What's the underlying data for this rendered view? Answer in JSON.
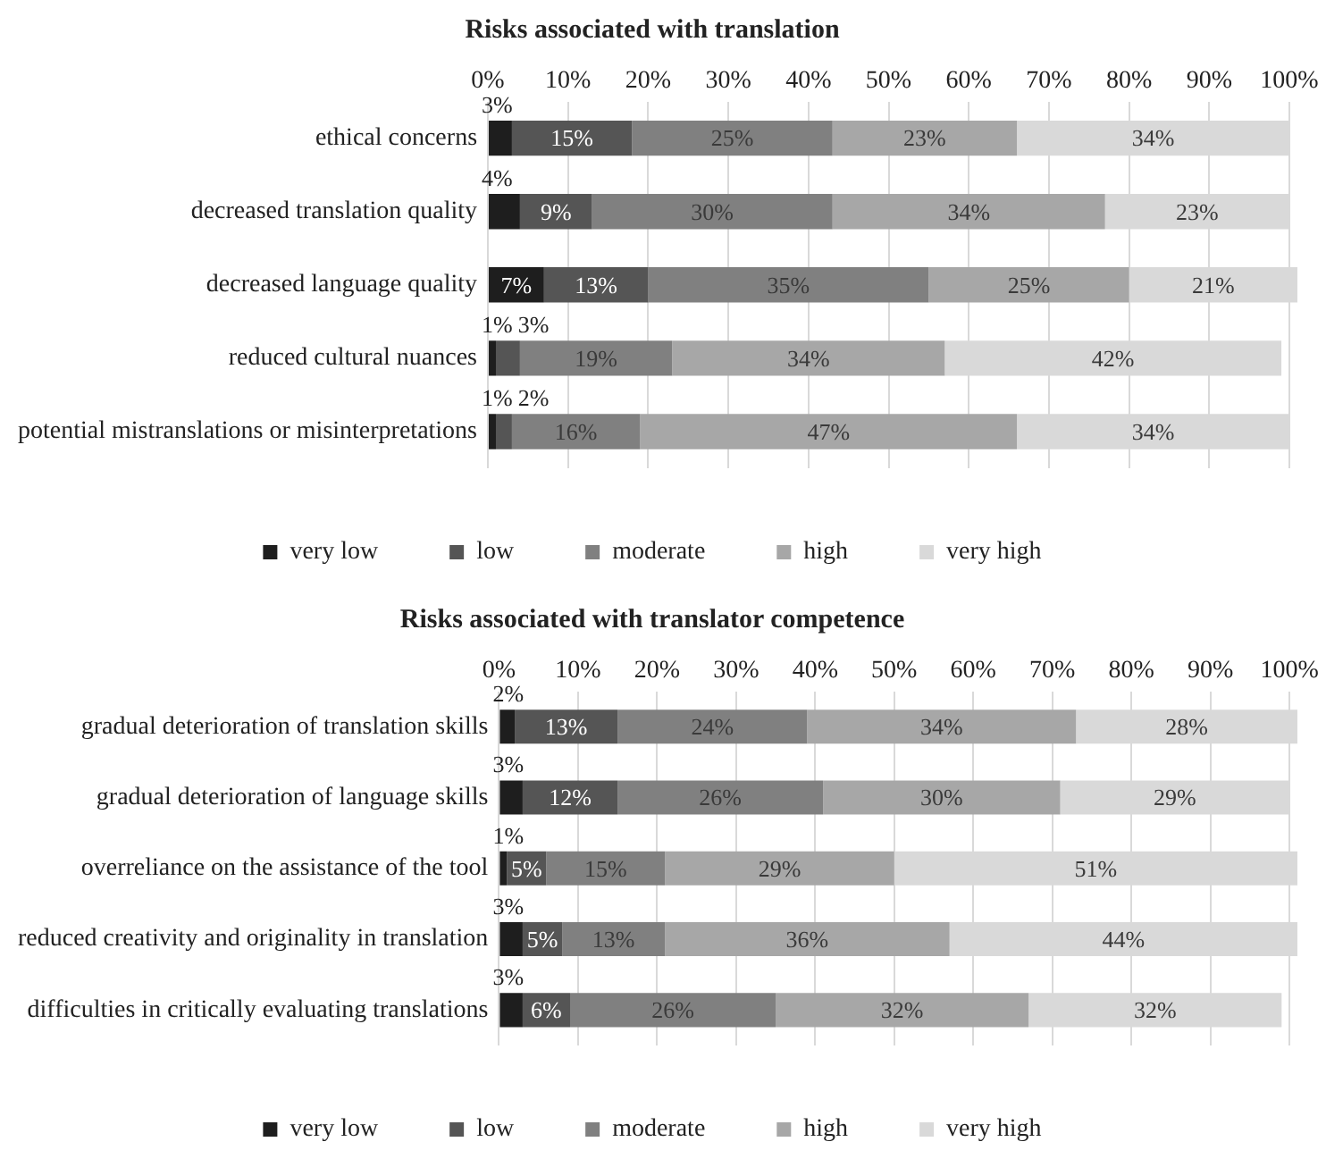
{
  "chart_data": [
    {
      "type": "bar",
      "orientation": "horizontal",
      "stacked": true,
      "title": "Risks associated with translation",
      "categories": [
        "ethical concerns",
        "decreased translation quality",
        "decreased language quality",
        "reduced cultural nuances",
        "potential mistranslations or misinterpretations"
      ],
      "series": [
        {
          "name": "very low",
          "color": "#1e1e1e",
          "values": [
            3,
            4,
            7,
            1,
            1
          ],
          "value_labels": [
            "3%",
            "4%",
            "7%",
            "1%",
            "1%"
          ]
        },
        {
          "name": "low",
          "color": "#555555",
          "values": [
            15,
            9,
            13,
            3,
            2
          ],
          "value_labels": [
            "15%",
            "9%",
            "13%",
            "3%",
            "2%"
          ]
        },
        {
          "name": "moderate",
          "color": "#808080",
          "values": [
            25,
            30,
            35,
            19,
            16
          ],
          "value_labels": [
            "25%",
            "30%",
            "35%",
            "19%",
            "16%"
          ]
        },
        {
          "name": "high",
          "color": "#a7a7a7",
          "values": [
            23,
            34,
            25,
            34,
            47
          ],
          "value_labels": [
            "23%",
            "34%",
            "25%",
            "34%",
            "47%"
          ]
        },
        {
          "name": "very high",
          "color": "#d9d9d9",
          "values": [
            34,
            23,
            21,
            42,
            34
          ],
          "value_labels": [
            "34%",
            "23%",
            "21%",
            "42%",
            "34%"
          ]
        }
      ],
      "xlim": [
        0,
        101
      ],
      "xticks": [
        {
          "value": 0,
          "label": "0%"
        },
        {
          "value": 10,
          "label": "10%"
        },
        {
          "value": 20,
          "label": "20%"
        },
        {
          "value": 30,
          "label": "30%"
        },
        {
          "value": 40,
          "label": "40%"
        },
        {
          "value": 50,
          "label": "50%"
        },
        {
          "value": 60,
          "label": "60%"
        },
        {
          "value": 70,
          "label": "70%"
        },
        {
          "value": 80,
          "label": "80%"
        },
        {
          "value": 90,
          "label": "90%"
        },
        {
          "value": 100,
          "label": "100%"
        }
      ],
      "grid": "x",
      "legend": "bottom"
    },
    {
      "type": "bar",
      "orientation": "horizontal",
      "stacked": true,
      "title": "Risks associated with translator competence",
      "categories": [
        "gradual deterioration of translation skills",
        "gradual deterioration of language skills",
        "overreliance on the assistance of the tool",
        "reduced creativity and originality in translation",
        "difficulties in critically evaluating translations"
      ],
      "series": [
        {
          "name": "very low",
          "color": "#1e1e1e",
          "values": [
            2,
            3,
            1,
            3,
            3
          ],
          "value_labels": [
            "2%",
            "3%",
            "1%",
            "3%",
            "3%"
          ]
        },
        {
          "name": "low",
          "color": "#555555",
          "values": [
            13,
            12,
            5,
            5,
            6
          ],
          "value_labels": [
            "13%",
            "12%",
            "5%",
            "5%",
            "6%"
          ]
        },
        {
          "name": "moderate",
          "color": "#808080",
          "values": [
            24,
            26,
            15,
            13,
            26
          ],
          "value_labels": [
            "24%",
            "26%",
            "15%",
            "13%",
            "26%"
          ]
        },
        {
          "name": "high",
          "color": "#a7a7a7",
          "values": [
            34,
            30,
            29,
            36,
            32
          ],
          "value_labels": [
            "34%",
            "30%",
            "29%",
            "36%",
            "32%"
          ]
        },
        {
          "name": "very high",
          "color": "#d9d9d9",
          "values": [
            28,
            29,
            51,
            44,
            32
          ],
          "value_labels": [
            "28%",
            "29%",
            "51%",
            "44%",
            "32%"
          ]
        }
      ],
      "xlim": [
        0,
        101
      ],
      "xticks": [
        {
          "value": 0,
          "label": "0%"
        },
        {
          "value": 10,
          "label": "10%"
        },
        {
          "value": 20,
          "label": "20%"
        },
        {
          "value": 30,
          "label": "30%"
        },
        {
          "value": 40,
          "label": "40%"
        },
        {
          "value": 50,
          "label": "50%"
        },
        {
          "value": 60,
          "label": "60%"
        },
        {
          "value": 70,
          "label": "70%"
        },
        {
          "value": 80,
          "label": "80%"
        },
        {
          "value": 90,
          "label": "90%"
        },
        {
          "value": 100,
          "label": "100%"
        }
      ],
      "grid": "x",
      "legend": "bottom"
    }
  ]
}
